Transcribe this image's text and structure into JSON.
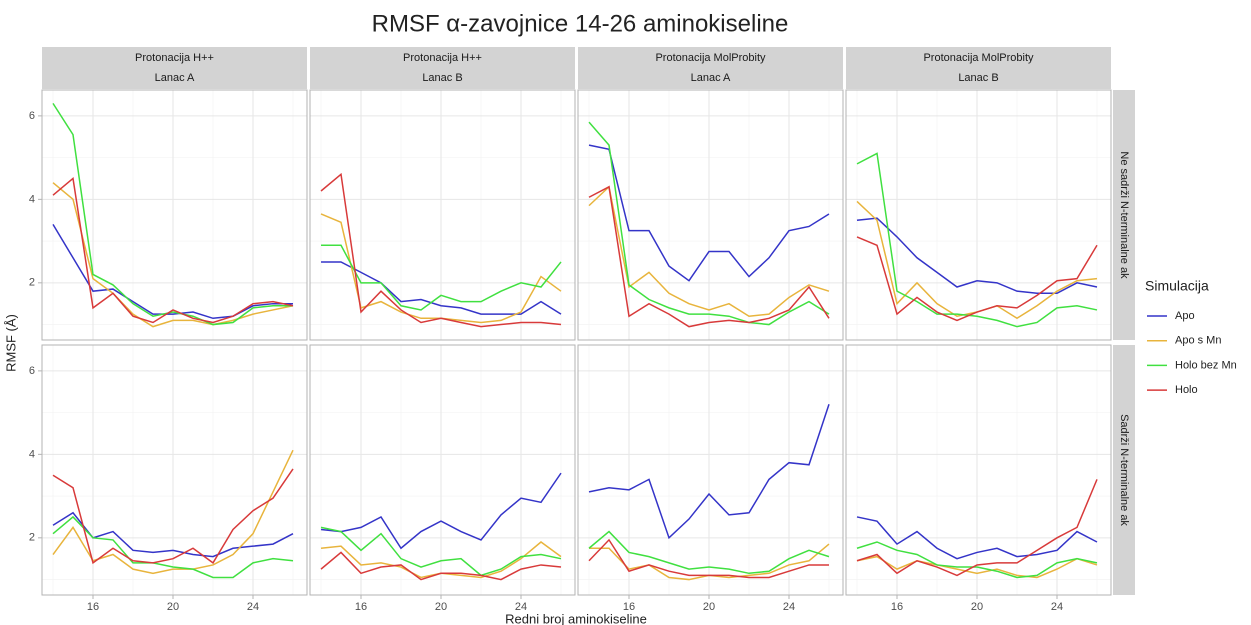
{
  "chart_data": {
    "type": "line",
    "title": "RMSF α-zavojnice 14-26 aminokiseline",
    "x_label": "Redni broj aminokiseline",
    "y_label": "RMSF (Å)",
    "legend_title": "Simulacija",
    "columns": [
      [
        "Protonacija H++",
        "Lanac A"
      ],
      [
        "Protonacija H++",
        "Lanac B"
      ],
      [
        "Protonacija MolProbity",
        "Lanac A"
      ],
      [
        "Protonacija MolProbity",
        "Lanac B"
      ]
    ],
    "rows": [
      "Ne sadrži N-terminalne ak",
      "Sadrži N-terminalne ak"
    ],
    "x": [
      14,
      15,
      16,
      17,
      18,
      19,
      20,
      21,
      22,
      23,
      24,
      25,
      26
    ],
    "xlim": [
      13.45,
      26.7
    ],
    "ylim": [
      0.63,
      6.62
    ],
    "xticks": [
      16,
      20,
      24
    ],
    "yticks": [
      2,
      4,
      6
    ],
    "x_minor_ticks": [
      14,
      18,
      22,
      26
    ],
    "y_minor_ticks": [
      1,
      3,
      5
    ],
    "grid": true,
    "series": [
      {
        "name": "Apo",
        "color": "#3434c8"
      },
      {
        "name": "Apo s Mn",
        "color": "#e8b43c"
      },
      {
        "name": "Holo bez Mn",
        "color": "#40e040"
      },
      {
        "name": "Holo",
        "color": "#d83a3a"
      }
    ],
    "panels": [
      [
        [
          3.4,
          2.6,
          1.8,
          1.85,
          1.55,
          1.25,
          1.25,
          1.3,
          1.15,
          1.2,
          1.45,
          1.5,
          1.5
        ],
        [
          4.4,
          4.0,
          2.1,
          1.75,
          1.25,
          0.95,
          1.1,
          1.1,
          1.0,
          1.1,
          1.25,
          1.35,
          1.45
        ],
        [
          6.3,
          5.55,
          2.2,
          1.95,
          1.5,
          1.2,
          1.3,
          1.2,
          1.0,
          1.05,
          1.4,
          1.45,
          1.45
        ],
        [
          4.1,
          4.5,
          1.4,
          1.75,
          1.2,
          1.05,
          1.35,
          1.15,
          1.05,
          1.2,
          1.5,
          1.55,
          1.45
        ]
      ],
      [
        [
          2.5,
          2.5,
          2.25,
          2.0,
          1.55,
          1.6,
          1.45,
          1.4,
          1.25,
          1.25,
          1.25,
          1.55,
          1.25
        ],
        [
          3.65,
          3.45,
          1.4,
          1.55,
          1.3,
          1.15,
          1.15,
          1.1,
          1.05,
          1.1,
          1.3,
          2.15,
          1.8
        ],
        [
          2.9,
          2.9,
          2.0,
          2.0,
          1.45,
          1.35,
          1.7,
          1.55,
          1.55,
          1.8,
          2.0,
          1.9,
          2.5
        ],
        [
          4.2,
          4.6,
          1.3,
          1.8,
          1.35,
          1.05,
          1.15,
          1.05,
          0.95,
          1.0,
          1.05,
          1.05,
          1.0
        ]
      ],
      [
        [
          5.3,
          5.2,
          3.25,
          3.25,
          2.4,
          2.05,
          2.75,
          2.75,
          2.15,
          2.6,
          3.25,
          3.35,
          3.65
        ],
        [
          3.85,
          4.3,
          1.9,
          2.25,
          1.75,
          1.5,
          1.35,
          1.5,
          1.2,
          1.25,
          1.65,
          1.95,
          1.8
        ],
        [
          5.85,
          5.3,
          1.95,
          1.6,
          1.4,
          1.25,
          1.25,
          1.2,
          1.05,
          1.0,
          1.3,
          1.55,
          1.25
        ],
        [
          4.05,
          4.3,
          1.2,
          1.5,
          1.25,
          0.95,
          1.05,
          1.1,
          1.05,
          1.15,
          1.35,
          1.9,
          1.15
        ]
      ],
      [
        [
          3.5,
          3.55,
          3.1,
          2.6,
          2.25,
          1.9,
          2.05,
          2.0,
          1.8,
          1.75,
          1.75,
          2.0,
          1.9
        ],
        [
          3.95,
          3.5,
          1.5,
          2.0,
          1.5,
          1.2,
          1.3,
          1.45,
          1.15,
          1.45,
          1.8,
          2.05,
          2.1
        ],
        [
          4.85,
          5.1,
          1.8,
          1.55,
          1.25,
          1.25,
          1.2,
          1.1,
          0.95,
          1.05,
          1.4,
          1.45,
          1.35
        ],
        [
          3.1,
          2.9,
          1.25,
          1.65,
          1.3,
          1.1,
          1.3,
          1.45,
          1.4,
          1.7,
          2.05,
          2.1,
          2.9
        ]
      ],
      [
        [
          2.3,
          2.6,
          2.0,
          2.15,
          1.7,
          1.65,
          1.7,
          1.6,
          1.55,
          1.75,
          1.8,
          1.85,
          2.1
        ],
        [
          1.6,
          2.25,
          1.45,
          1.6,
          1.25,
          1.15,
          1.25,
          1.25,
          1.35,
          1.6,
          2.1,
          3.1,
          4.1
        ],
        [
          2.1,
          2.5,
          2.0,
          1.95,
          1.4,
          1.4,
          1.3,
          1.25,
          1.05,
          1.05,
          1.4,
          1.5,
          1.45
        ],
        [
          3.5,
          3.2,
          1.4,
          1.75,
          1.45,
          1.4,
          1.5,
          1.75,
          1.4,
          2.2,
          2.65,
          2.95,
          3.65
        ]
      ],
      [
        [
          2.2,
          2.15,
          2.25,
          2.5,
          1.75,
          2.15,
          2.4,
          2.15,
          1.95,
          2.55,
          2.95,
          2.85,
          3.55
        ],
        [
          1.75,
          1.8,
          1.35,
          1.4,
          1.3,
          1.05,
          1.15,
          1.1,
          1.05,
          1.2,
          1.5,
          1.9,
          1.55
        ],
        [
          2.25,
          2.15,
          1.7,
          2.1,
          1.5,
          1.3,
          1.45,
          1.5,
          1.1,
          1.25,
          1.55,
          1.6,
          1.5
        ],
        [
          1.25,
          1.65,
          1.15,
          1.3,
          1.35,
          1.0,
          1.15,
          1.15,
          1.1,
          1.0,
          1.25,
          1.35,
          1.3
        ]
      ],
      [
        [
          3.1,
          3.2,
          3.15,
          3.4,
          2.0,
          2.45,
          3.05,
          2.55,
          2.6,
          3.4,
          3.8,
          3.75,
          5.2
        ],
        [
          1.75,
          1.75,
          1.25,
          1.35,
          1.05,
          1.0,
          1.1,
          1.05,
          1.1,
          1.15,
          1.35,
          1.45,
          1.85
        ],
        [
          1.75,
          2.15,
          1.65,
          1.55,
          1.4,
          1.25,
          1.3,
          1.25,
          1.15,
          1.2,
          1.5,
          1.7,
          1.55
        ],
        [
          1.45,
          1.95,
          1.2,
          1.35,
          1.2,
          1.1,
          1.1,
          1.1,
          1.05,
          1.05,
          1.2,
          1.35,
          1.35
        ]
      ],
      [
        [
          2.5,
          2.4,
          1.85,
          2.15,
          1.75,
          1.5,
          1.65,
          1.75,
          1.55,
          1.6,
          1.7,
          2.15,
          1.9
        ],
        [
          1.45,
          1.55,
          1.25,
          1.45,
          1.35,
          1.25,
          1.15,
          1.25,
          1.1,
          1.05,
          1.25,
          1.5,
          1.35
        ],
        [
          1.75,
          1.9,
          1.7,
          1.6,
          1.35,
          1.3,
          1.3,
          1.2,
          1.05,
          1.1,
          1.4,
          1.5,
          1.4
        ],
        [
          1.45,
          1.6,
          1.15,
          1.45,
          1.3,
          1.1,
          1.35,
          1.4,
          1.4,
          1.7,
          2.0,
          2.25,
          3.4
        ]
      ]
    ]
  }
}
